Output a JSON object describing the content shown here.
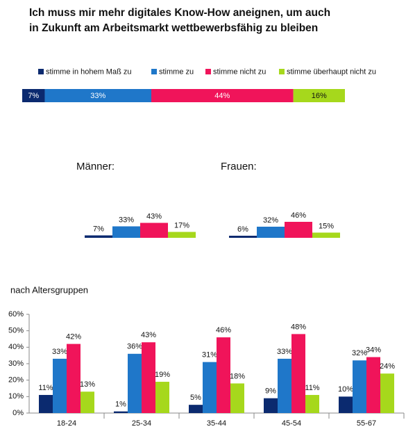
{
  "chart_data": [
    {
      "type": "bar",
      "orientation": "horizontal",
      "stacked": true,
      "title": "Ich muss mir mehr digitales Know-How aneignen, um auch in Zukunft am Arbeitsmarkt wettbewerbsfähig zu bleiben",
      "xlim": [
        0,
        100
      ],
      "series": [
        {
          "name": "stimme in hohem Maß zu",
          "color": "#0b2a6f",
          "label_color": "#ffffff",
          "values": [
            7
          ],
          "value_labels": [
            "7%"
          ]
        },
        {
          "name": "stimme zu",
          "color": "#1f77c9",
          "label_color": "#ffffff",
          "values": [
            33
          ],
          "value_labels": [
            "33%"
          ]
        },
        {
          "name": "stimme nicht zu",
          "color": "#f0145a",
          "label_color": "#ffffff",
          "values": [
            44
          ],
          "value_labels": [
            "44%"
          ]
        },
        {
          "name": "stimme überhaupt nicht zu",
          "color": "#a6d81c",
          "label_color": "#111111",
          "values": [
            16
          ],
          "value_labels": [
            "16%"
          ]
        }
      ]
    },
    {
      "type": "bar",
      "title": "Männer:",
      "ylim": [
        0,
        100
      ],
      "colors": [
        "#0b2a6f",
        "#1f77c9",
        "#f0145a",
        "#a6d81c"
      ],
      "values": [
        7,
        33,
        43,
        17
      ],
      "value_labels": [
        "7%",
        "33%",
        "43%",
        "17%"
      ]
    },
    {
      "type": "bar",
      "title": "Frauen:",
      "ylim": [
        0,
        100
      ],
      "colors": [
        "#0b2a6f",
        "#1f77c9",
        "#f0145a",
        "#a6d81c"
      ],
      "values": [
        6,
        32,
        46,
        15
      ],
      "value_labels": [
        "6%",
        "32%",
        "46%",
        "15%"
      ]
    },
    {
      "type": "bar",
      "title": "nach Altersgruppen",
      "categories": [
        "18-24",
        "25-34",
        "35-44",
        "45-54",
        "55-67"
      ],
      "ylim": [
        0,
        60
      ],
      "yticks": [
        {
          "value": 0,
          "label": "0%"
        },
        {
          "value": 10,
          "label": "10%"
        },
        {
          "value": 20,
          "label": "20%"
        },
        {
          "value": 30,
          "label": "30%"
        },
        {
          "value": 40,
          "label": "40%"
        },
        {
          "value": 50,
          "label": "50%"
        },
        {
          "value": 60,
          "label": "60%"
        }
      ],
      "series": [
        {
          "color": "#0b2a6f",
          "values": [
            11,
            1,
            5,
            9,
            10
          ],
          "value_labels": [
            "11%",
            "1%",
            "5%",
            "9%",
            "10%"
          ]
        },
        {
          "color": "#1f77c9",
          "values": [
            33,
            36,
            31,
            33,
            32
          ],
          "value_labels": [
            "33%",
            "36%",
            "31%",
            "33%",
            "32%"
          ]
        },
        {
          "color": "#f0145a",
          "values": [
            42,
            43,
            46,
            48,
            34
          ],
          "value_labels": [
            "42%",
            "43%",
            "46%",
            "48%",
            "34%"
          ]
        },
        {
          "color": "#a6d81c",
          "values": [
            13,
            19,
            18,
            11,
            24
          ],
          "value_labels": [
            "13%",
            "19%",
            "18%",
            "11%",
            "24%"
          ]
        }
      ]
    }
  ]
}
